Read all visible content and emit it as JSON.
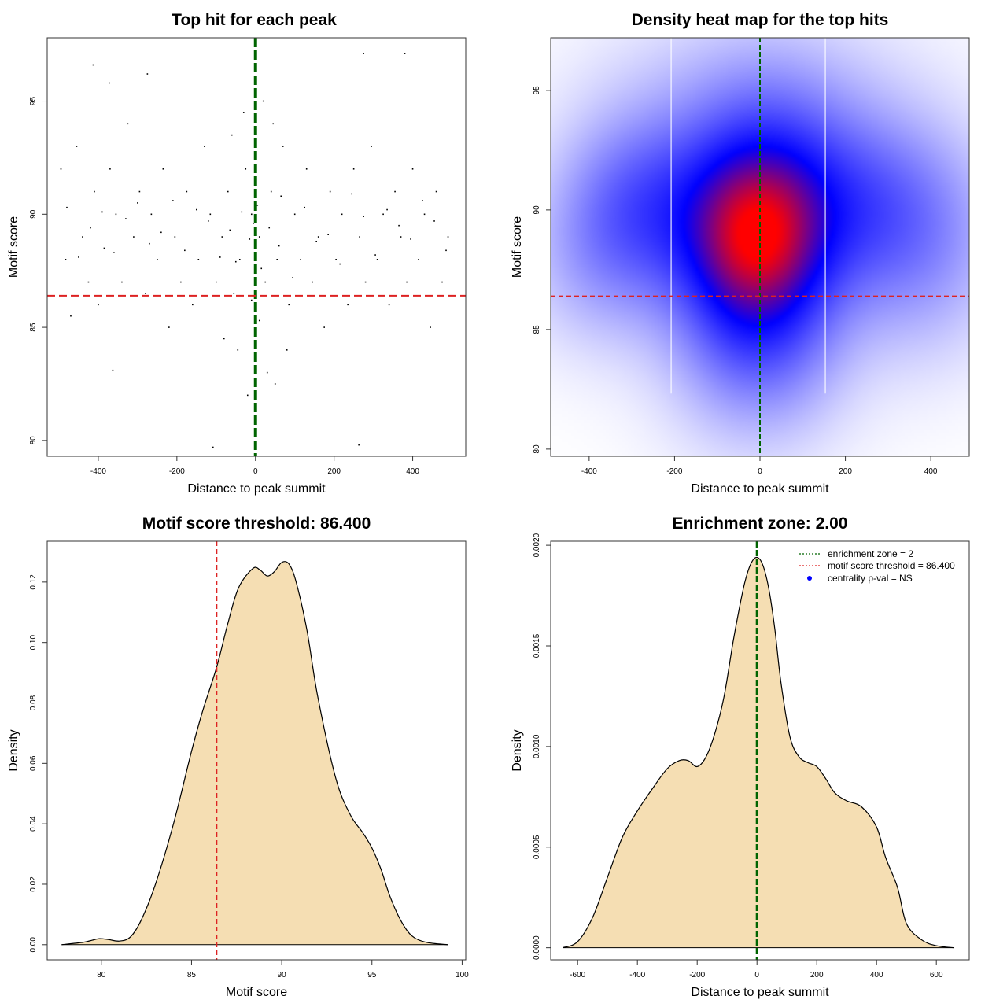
{
  "chart_data": [
    {
      "id": "scatter",
      "type": "scatter",
      "title": "Top hit for each peak",
      "xlabel": "Distance to peak summit",
      "ylabel": "Motif score",
      "xlim": [
        -530,
        535
      ],
      "ylim": [
        79.3,
        97.8
      ],
      "xticks": [
        -400,
        -200,
        0,
        200,
        400
      ],
      "yticks": [
        80,
        85,
        90,
        95
      ],
      "reference_lines": {
        "vertical_x": 0,
        "horizontal_y": 86.4
      },
      "colors": {
        "points": "#000000",
        "vline": "#006400",
        "hline": "#DD2222"
      },
      "points": [
        [
          -413,
          96.6
        ],
        [
          -372,
          95.8
        ],
        [
          -363,
          83.1
        ],
        [
          -275,
          96.2
        ],
        [
          -108,
          79.7
        ],
        [
          263,
          79.8
        ],
        [
          275,
          97.1
        ],
        [
          380,
          97.1
        ],
        [
          -495,
          92
        ],
        [
          -483,
          88
        ],
        [
          -470,
          85.5
        ],
        [
          -455,
          93
        ],
        [
          -440,
          89
        ],
        [
          -425,
          87
        ],
        [
          -410,
          91
        ],
        [
          -400,
          86
        ],
        [
          -385,
          88.5
        ],
        [
          -370,
          92
        ],
        [
          -355,
          90
        ],
        [
          -340,
          87
        ],
        [
          -325,
          94
        ],
        [
          -310,
          89
        ],
        [
          -295,
          91
        ],
        [
          -280,
          86.5
        ],
        [
          -265,
          90
        ],
        [
          -250,
          88
        ],
        [
          -235,
          92
        ],
        [
          -220,
          85
        ],
        [
          -205,
          89
        ],
        [
          -190,
          87
        ],
        [
          -175,
          91
        ],
        [
          -160,
          86
        ],
        [
          -145,
          88
        ],
        [
          -130,
          93
        ],
        [
          -115,
          90
        ],
        [
          -100,
          87
        ],
        [
          -85,
          89
        ],
        [
          -70,
          91
        ],
        [
          -55,
          86.5
        ],
        [
          -40,
          88
        ],
        [
          -25,
          92
        ],
        [
          -10,
          90
        ],
        [
          10,
          89
        ],
        [
          25,
          87
        ],
        [
          40,
          91
        ],
        [
          55,
          88
        ],
        [
          70,
          93
        ],
        [
          85,
          86
        ],
        [
          100,
          90
        ],
        [
          115,
          88
        ],
        [
          130,
          92
        ],
        [
          145,
          87
        ],
        [
          160,
          89
        ],
        [
          175,
          85
        ],
        [
          190,
          91
        ],
        [
          205,
          88
        ],
        [
          220,
          90
        ],
        [
          235,
          86
        ],
        [
          250,
          92
        ],
        [
          265,
          89
        ],
        [
          280,
          87
        ],
        [
          295,
          93
        ],
        [
          310,
          88
        ],
        [
          325,
          90
        ],
        [
          340,
          86
        ],
        [
          355,
          91
        ],
        [
          370,
          89
        ],
        [
          385,
          87
        ],
        [
          400,
          92
        ],
        [
          415,
          88
        ],
        [
          430,
          90
        ],
        [
          445,
          85
        ],
        [
          460,
          91
        ],
        [
          475,
          87
        ],
        [
          490,
          89
        ],
        [
          -60,
          93.5
        ],
        [
          -30,
          94.5
        ],
        [
          20,
          95
        ],
        [
          45,
          94
        ],
        [
          -45,
          84
        ],
        [
          -20,
          82
        ],
        [
          30,
          83
        ],
        [
          50,
          82.5
        ],
        [
          -80,
          84.5
        ],
        [
          80,
          84
        ],
        [
          10,
          85.3
        ],
        [
          -10,
          86.2
        ],
        [
          0,
          88.3
        ],
        [
          -5,
          89.6
        ],
        [
          5,
          90.4
        ],
        [
          15,
          87.6
        ],
        [
          -15,
          88.9
        ],
        [
          -35,
          90.1
        ],
        [
          35,
          89.4
        ],
        [
          -50,
          87.9
        ],
        [
          60,
          88.6
        ],
        [
          -65,
          89.3
        ],
        [
          65,
          90.8
        ],
        [
          -90,
          88.1
        ],
        [
          95,
          87.2
        ],
        [
          -120,
          89.7
        ],
        [
          125,
          90.3
        ],
        [
          -150,
          90.2
        ],
        [
          155,
          88.8
        ],
        [
          -180,
          88.4
        ],
        [
          185,
          89.1
        ],
        [
          -210,
          90.6
        ],
        [
          215,
          87.8
        ],
        [
          -240,
          89.2
        ],
        [
          245,
          90.9
        ],
        [
          -270,
          88.7
        ],
        [
          275,
          89.9
        ],
        [
          -300,
          90.5
        ],
        [
          305,
          88.2
        ],
        [
          -330,
          89.8
        ],
        [
          335,
          90.2
        ],
        [
          -360,
          88.3
        ],
        [
          365,
          89.5
        ],
        [
          -390,
          90.1
        ],
        [
          395,
          88.9
        ],
        [
          -420,
          89.4
        ],
        [
          425,
          90.6
        ],
        [
          -450,
          88.1
        ],
        [
          455,
          89.7
        ],
        [
          -480,
          90.3
        ],
        [
          485,
          88.4
        ]
      ]
    },
    {
      "id": "heatmap",
      "type": "heatmap",
      "title": "Density heat map for the top hits",
      "xlabel": "Distance to peak summit",
      "ylabel": "Motif score",
      "xlim": [
        -490,
        490
      ],
      "ylim": [
        79.7,
        97.2
      ],
      "xticks": [
        -400,
        -200,
        0,
        200,
        400
      ],
      "yticks": [
        80,
        85,
        90,
        95
      ],
      "reference_lines": {
        "vertical_x": 0,
        "horizontal_y": 86.4,
        "white_lines_x": [
          -208,
          153
        ]
      },
      "colors": {
        "low": "#FFFFFF",
        "mid": "#0000FF",
        "high": "#FF0000",
        "vline": "#006400",
        "hline": "#DD2222"
      },
      "blobs": [
        {
          "x": -10,
          "y": 88.8,
          "sx": 105,
          "sy": 2.4,
          "w": 1.0
        },
        {
          "x": -10,
          "y": 88.0,
          "sx": 150,
          "sy": 4.0,
          "w": 0.55
        },
        {
          "x": -270,
          "y": 90.3,
          "sx": 130,
          "sy": 2.6,
          "w": 0.55
        },
        {
          "x": 240,
          "y": 90.3,
          "sx": 170,
          "sy": 2.6,
          "w": 0.55
        },
        {
          "x": 10,
          "y": 92.2,
          "sx": 130,
          "sy": 2.6,
          "w": 0.3
        },
        {
          "x": 0,
          "y": 84.5,
          "sx": 120,
          "sy": 2.5,
          "w": 0.3
        },
        {
          "x": -380,
          "y": 87.8,
          "sx": 120,
          "sy": 2.5,
          "w": 0.2
        },
        {
          "x": 380,
          "y": 87.5,
          "sx": 130,
          "sy": 2.8,
          "w": 0.22
        },
        {
          "x": 0,
          "y": 95.5,
          "sx": 250,
          "sy": 2.2,
          "w": 0.12
        }
      ]
    },
    {
      "id": "score-density",
      "type": "area",
      "title": "Motif score threshold: 86.400",
      "xlabel": "Motif score",
      "ylabel": "Density",
      "xlim": [
        77,
        100.2
      ],
      "ylim": [
        -0.005,
        0.1335
      ],
      "xticks": [
        80,
        85,
        90,
        95,
        100
      ],
      "yticks": [
        0.0,
        0.02,
        0.04,
        0.06,
        0.08,
        0.1,
        0.12
      ],
      "ytick_labels": [
        "0.00",
        "0.02",
        "0.04",
        "0.06",
        "0.08",
        "0.10",
        "0.12"
      ],
      "reference_lines": {
        "vertical_x": 86.4
      },
      "colors": {
        "fill": "#F5DEB3",
        "line": "#000000",
        "threshold": "#DD2222"
      },
      "x": [
        77.8,
        79,
        79.5,
        79.9,
        80.4,
        81,
        81.6,
        82.2,
        83,
        84,
        85,
        85.6,
        86.4,
        87,
        87.6,
        88.4,
        88.8,
        89.2,
        89.6,
        90,
        90.4,
        90.8,
        91.4,
        92,
        93,
        93.8,
        94.5,
        95,
        95.5,
        96,
        96.6,
        97.2,
        98,
        99.2
      ],
      "y": [
        0,
        0.0008,
        0.0015,
        0.002,
        0.0017,
        0.0012,
        0.0025,
        0.008,
        0.02,
        0.04,
        0.064,
        0.077,
        0.092,
        0.106,
        0.118,
        0.1245,
        0.124,
        0.122,
        0.1235,
        0.1265,
        0.126,
        0.12,
        0.104,
        0.082,
        0.055,
        0.043,
        0.037,
        0.032,
        0.025,
        0.016,
        0.008,
        0.003,
        0.0008,
        0
      ]
    },
    {
      "id": "distance-density",
      "type": "area",
      "title": "Enrichment zone: 2.00",
      "xlabel": "Distance to peak summit",
      "ylabel": "Density",
      "xlim": [
        -690,
        710
      ],
      "ylim": [
        -6e-05,
        0.00202
      ],
      "xticks": [
        -600,
        -400,
        -200,
        0,
        200,
        400,
        600
      ],
      "yticks": [
        0,
        0.0005,
        0.001,
        0.0015,
        0.002
      ],
      "ytick_labels": [
        "0.0000",
        "0.0005",
        "0.0010",
        "0.0015",
        "0.0020"
      ],
      "reference_lines": {
        "vertical_x": 0
      },
      "colors": {
        "fill": "#F5DEB3",
        "line": "#000000",
        "vline": "#006400",
        "legend_green": "#006400",
        "legend_red": "#DD2222",
        "legend_dot": "#0000FF"
      },
      "x": [
        -650,
        -600,
        -550,
        -500,
        -450,
        -400,
        -350,
        -300,
        -260,
        -230,
        -200,
        -170,
        -140,
        -110,
        -80,
        -60,
        -40,
        -20,
        0,
        20,
        40,
        60,
        80,
        110,
        140,
        170,
        200,
        230,
        260,
        300,
        350,
        400,
        430,
        470,
        500,
        550,
        600,
        660
      ],
      "y": [
        0,
        3e-05,
        0.00015,
        0.00035,
        0.00055,
        0.00068,
        0.00079,
        0.00089,
        0.00093,
        0.00093,
        0.0009,
        0.00095,
        0.00107,
        0.00125,
        0.00152,
        0.00168,
        0.00182,
        0.00191,
        0.00194,
        0.0019,
        0.00178,
        0.00158,
        0.00132,
        0.00105,
        0.00095,
        0.00092,
        0.0009,
        0.00084,
        0.00077,
        0.00073,
        0.0007,
        0.0006,
        0.00045,
        0.0003,
        0.00012,
        4e-05,
        1e-05,
        0
      ],
      "legend": {
        "placement": "top-right",
        "entries": [
          "enrichment zone = 2",
          "motif score threshold = 86.400",
          "centrality p-val = NS"
        ]
      }
    }
  ]
}
